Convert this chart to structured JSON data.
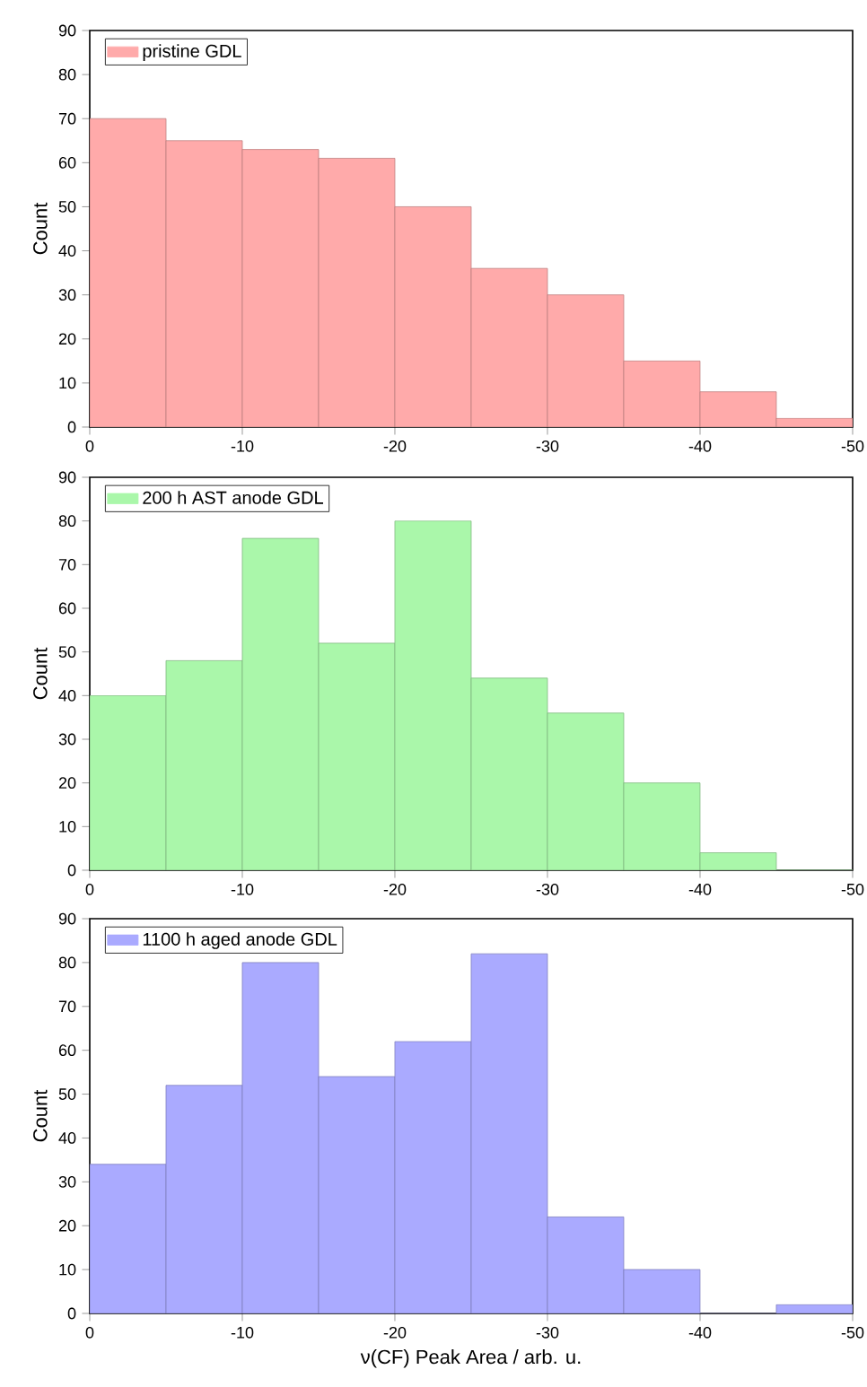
{
  "chart_data": [
    {
      "type": "histogram",
      "ylabel": "Count",
      "bins": [
        0,
        -5,
        -10,
        -15,
        -20,
        -25,
        -30,
        -35,
        -40,
        -45,
        -50
      ],
      "xlim": [
        0,
        -50
      ],
      "xticks": [
        0,
        -10,
        -20,
        -30,
        -40,
        -50
      ],
      "ylim": [
        0,
        90
      ],
      "yticks": [
        0,
        10,
        20,
        30,
        40,
        50,
        60,
        70,
        80,
        90
      ],
      "legend": "top left",
      "series": [
        {
          "name": "pristine GDL",
          "color": "#ffaaaa",
          "values": [
            70,
            65,
            63,
            61,
            50,
            36,
            30,
            15,
            8,
            2
          ]
        }
      ]
    },
    {
      "type": "histogram",
      "ylabel": "Count",
      "bins": [
        0,
        -5,
        -10,
        -15,
        -20,
        -25,
        -30,
        -35,
        -40,
        -45,
        -50
      ],
      "xlim": [
        0,
        -50
      ],
      "xticks": [
        0,
        -10,
        -20,
        -30,
        -40,
        -50
      ],
      "ylim": [
        0,
        90
      ],
      "yticks": [
        0,
        10,
        20,
        30,
        40,
        50,
        60,
        70,
        80,
        90
      ],
      "legend": "top left",
      "series": [
        {
          "name": "200 h AST anode GDL",
          "color": "#aaf7aa",
          "values": [
            40,
            48,
            76,
            52,
            80,
            44,
            36,
            20,
            4,
            0
          ]
        }
      ]
    },
    {
      "type": "histogram",
      "xlabel": "ν(CF) Peak Area / arb. u.",
      "ylabel": "Count",
      "bins": [
        0,
        -5,
        -10,
        -15,
        -20,
        -25,
        -30,
        -35,
        -40,
        -45,
        -50
      ],
      "xlim": [
        0,
        -50
      ],
      "xticks": [
        0,
        -10,
        -20,
        -30,
        -40,
        -50
      ],
      "ylim": [
        0,
        90
      ],
      "yticks": [
        0,
        10,
        20,
        30,
        40,
        50,
        60,
        70,
        80,
        90
      ],
      "legend": "top left",
      "series": [
        {
          "name": "1100 h aged anode GDL",
          "color": "#aaaaff",
          "values": [
            34,
            52,
            80,
            54,
            62,
            82,
            22,
            10,
            0,
            2
          ]
        }
      ]
    }
  ]
}
